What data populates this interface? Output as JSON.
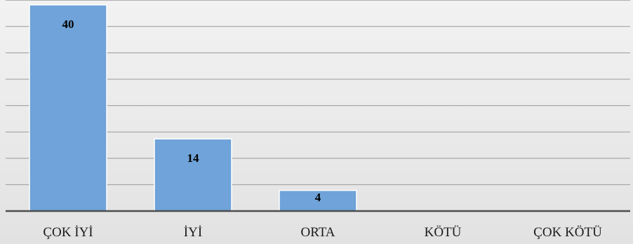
{
  "chart_data": {
    "type": "bar",
    "categories": [
      "ÇOK İYİ",
      "İYİ",
      "ORTA",
      "KÖTÜ",
      "ÇOK KÖTÜ"
    ],
    "values": [
      40,
      14,
      4,
      0,
      0
    ],
    "data_labels": [
      "40",
      "14",
      "4",
      "",
      ""
    ],
    "ylim": [
      0,
      40
    ],
    "grid": true,
    "show_y_tick_labels": false,
    "bar_color": "#6fa3d9",
    "bar_edge_color": "#ffffff",
    "label_color": "#000000",
    "axis_color": "#4d4d4d",
    "grid_color": "#9a9a9a"
  }
}
